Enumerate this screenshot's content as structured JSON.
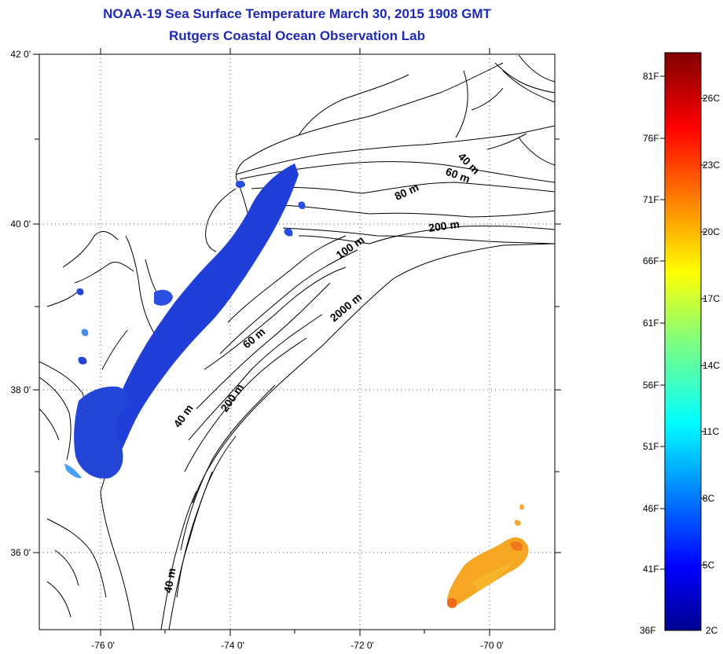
{
  "header": {
    "title": "NOAA-19 Sea Surface Temperature March 30, 2015 1908 GMT",
    "subtitle": "Rutgers Coastal Ocean Observation Lab"
  },
  "map": {
    "lat_labels": [
      "42 0'",
      "40 0'",
      "38 0'",
      "36 0'"
    ],
    "lon_labels": [
      "-76 0'",
      "-74 0'",
      "-72 0'",
      "-70 0'"
    ],
    "grid": "dotted",
    "depth_labels": [
      "40 m",
      "60 m",
      "80 m",
      "200 m",
      "100 m",
      "2000 m",
      "60 m",
      "40 m",
      "200 m",
      "40 m"
    ],
    "colors": {
      "land_outline": "#000000",
      "cold_water": "#1f3fd8",
      "warm_water": "#f5a020",
      "title": "#1e2ab4"
    }
  },
  "colorbar": {
    "fahrenheit_labels": [
      "81F",
      "76F",
      "71F",
      "66F",
      "61F",
      "56F",
      "51F",
      "46F",
      "41F",
      "36F"
    ],
    "celsius_labels": [
      "26C",
      "23C",
      "20C",
      "17C",
      "14C",
      "11C",
      "8C",
      "5C",
      "2C"
    ],
    "range_f": [
      36,
      83
    ],
    "range_c": [
      2,
      28
    ],
    "colormap": "jet"
  }
}
